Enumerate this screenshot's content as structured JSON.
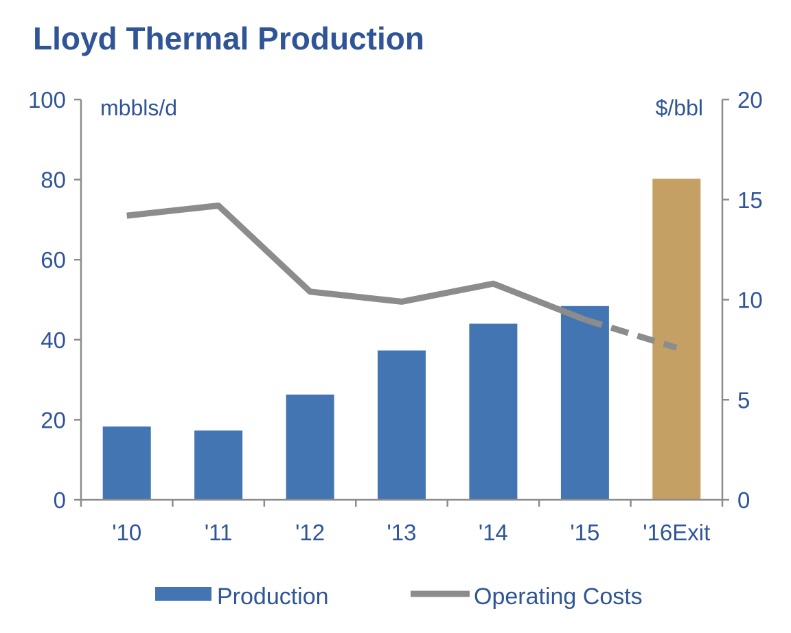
{
  "chart_data": {
    "type": "bar",
    "title": "Lloyd Thermal Production",
    "categories": [
      "'10",
      "'11",
      "'12",
      "'13",
      "'14",
      "'15",
      "'16Exit"
    ],
    "series": [
      {
        "name": "Production",
        "type": "bar",
        "axis": "left",
        "values": [
          18.3,
          17.3,
          26.3,
          37.3,
          44.0,
          48.4,
          80.2
        ],
        "colors": [
          "#4375b2",
          "#4375b2",
          "#4375b2",
          "#4375b2",
          "#4375b2",
          "#4375b2",
          "#c4a064"
        ]
      },
      {
        "name": "Operating Costs",
        "type": "line",
        "axis": "right",
        "values": [
          14.2,
          14.7,
          10.4,
          9.9,
          10.8,
          9.0,
          7.6
        ],
        "dashed_from_index": 5,
        "color": "#8c8c8c"
      }
    ],
    "left_axis": {
      "unit": "mbbls/d",
      "ylim": [
        0,
        100
      ],
      "ticks": [
        "0",
        "20",
        "40",
        "60",
        "80",
        "100"
      ]
    },
    "right_axis": {
      "unit": "$/bbl",
      "ylim": [
        0,
        20
      ],
      "ticks": [
        "0",
        "5",
        "10",
        "15",
        "20"
      ]
    },
    "grid": false,
    "legend_position": "bottom"
  },
  "colors": {
    "text": "#2f5597",
    "axis": "#8c8c8c",
    "bar": "#4375b2",
    "bar_highlight": "#c4a064",
    "line": "#8c8c8c"
  }
}
